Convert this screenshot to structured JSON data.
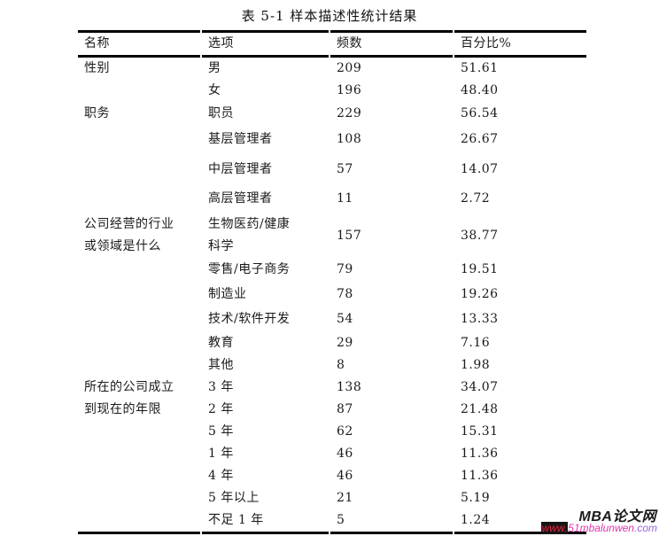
{
  "page": {
    "title": "表 5-1 样本描述性统计结果"
  },
  "table": {
    "headers": [
      "名称",
      "选项",
      "频数",
      "百分比%"
    ],
    "rows": [
      {
        "name": "性别",
        "option": "男",
        "freq": "209",
        "pct": "51.61"
      },
      {
        "name": "",
        "option": "女",
        "freq": "196",
        "pct": "48.40"
      },
      {
        "name": "职务",
        "option": "职员",
        "freq": "229",
        "pct": "56.54"
      },
      {
        "name": "",
        "option": "基层管理者",
        "freq": "108",
        "pct": "26.67"
      },
      {
        "name": "",
        "option": "中层管理者",
        "freq": "57",
        "pct": "14.07"
      },
      {
        "name": "",
        "option": "高层管理者",
        "freq": "11",
        "pct": "2.72"
      },
      {
        "name": "公司经营的行业\n或领域是什么",
        "option": "生物医药/健康\n科学",
        "freq": "157",
        "pct": "38.77"
      },
      {
        "name": "",
        "option": "零售/电子商务",
        "freq": "79",
        "pct": "19.51"
      },
      {
        "name": "",
        "option": "制造业",
        "freq": "78",
        "pct": "19.26"
      },
      {
        "name": "",
        "option": "技术/软件开发",
        "freq": "54",
        "pct": "13.33"
      },
      {
        "name": "",
        "option": "教育",
        "freq": "29",
        "pct": "7.16"
      },
      {
        "name": "",
        "option": "其他",
        "freq": "8",
        "pct": "1.98"
      },
      {
        "name": "所在的公司成立\n到现在的年限",
        "option": "3 年",
        "freq": "138",
        "pct": "34.07"
      },
      {
        "name": "",
        "option": "2 年",
        "freq": "87",
        "pct": "21.48"
      },
      {
        "name": "",
        "option": "5 年",
        "freq": "62",
        "pct": "15.31"
      },
      {
        "name": "",
        "option": "1 年",
        "freq": "46",
        "pct": "11.36"
      },
      {
        "name": "",
        "option": "4 年",
        "freq": "46",
        "pct": "11.36"
      },
      {
        "name": "",
        "option": "5 年以上",
        "freq": "21",
        "pct": "5.19"
      },
      {
        "name": "",
        "option": "不足 1 年",
        "freq": "5",
        "pct": "1.24"
      }
    ]
  },
  "watermark": {
    "brand": "MBA论文网",
    "url_www": "www.",
    "url_mid": "51mbalunwen",
    "url_tld": ".com"
  },
  "colors": {
    "text": "#1a1a1a",
    "rule": "#000000",
    "watermark_brand": "#1a1a1a",
    "watermark_www_bg": "#151515",
    "watermark_www": "#e8243c",
    "watermark_url": "#e535ae",
    "watermark_tld": "#9b64dd"
  }
}
